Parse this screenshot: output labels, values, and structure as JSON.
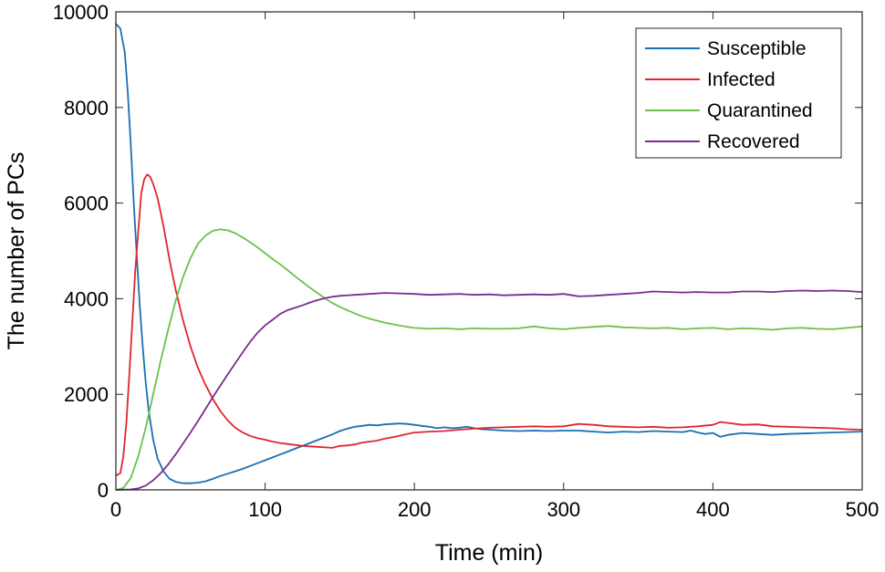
{
  "chart_data": {
    "type": "line",
    "title": "",
    "xlabel": "Time (min)",
    "ylabel": "The number of PCs",
    "xlim": [
      0,
      500
    ],
    "ylim": [
      0,
      10000
    ],
    "xticks": [
      0,
      100,
      200,
      300,
      400,
      500
    ],
    "yticks": [
      0,
      2000,
      4000,
      6000,
      8000,
      10000
    ],
    "xtick_labels": [
      "0",
      "100",
      "200",
      "300",
      "400",
      "500"
    ],
    "ytick_labels": [
      "0",
      "2000",
      "4000",
      "6000",
      "8000",
      "10000"
    ],
    "grid": false,
    "legend_position": "top-right",
    "series": [
      {
        "name": "Susceptible",
        "color": "#1a6fb5",
        "points": [
          [
            0,
            9750
          ],
          [
            3,
            9650
          ],
          [
            6,
            9150
          ],
          [
            8,
            8300
          ],
          [
            10,
            7200
          ],
          [
            12,
            6000
          ],
          [
            14,
            4900
          ],
          [
            16,
            3850
          ],
          [
            18,
            3000
          ],
          [
            20,
            2250
          ],
          [
            22,
            1650
          ],
          [
            25,
            1050
          ],
          [
            28,
            650
          ],
          [
            32,
            380
          ],
          [
            36,
            230
          ],
          [
            40,
            170
          ],
          [
            45,
            140
          ],
          [
            50,
            140
          ],
          [
            55,
            150
          ],
          [
            60,
            180
          ],
          [
            65,
            230
          ],
          [
            70,
            290
          ],
          [
            75,
            340
          ],
          [
            80,
            390
          ],
          [
            85,
            440
          ],
          [
            90,
            500
          ],
          [
            95,
            560
          ],
          [
            100,
            620
          ],
          [
            105,
            680
          ],
          [
            110,
            740
          ],
          [
            115,
            800
          ],
          [
            120,
            860
          ],
          [
            125,
            920
          ],
          [
            130,
            980
          ],
          [
            135,
            1040
          ],
          [
            140,
            1100
          ],
          [
            145,
            1160
          ],
          [
            150,
            1230
          ],
          [
            155,
            1280
          ],
          [
            160,
            1320
          ],
          [
            165,
            1340
          ],
          [
            170,
            1360
          ],
          [
            175,
            1350
          ],
          [
            180,
            1370
          ],
          [
            185,
            1380
          ],
          [
            190,
            1390
          ],
          [
            195,
            1380
          ],
          [
            200,
            1360
          ],
          [
            205,
            1340
          ],
          [
            210,
            1320
          ],
          [
            215,
            1290
          ],
          [
            220,
            1310
          ],
          [
            225,
            1290
          ],
          [
            230,
            1300
          ],
          [
            235,
            1320
          ],
          [
            240,
            1290
          ],
          [
            245,
            1270
          ],
          [
            250,
            1260
          ],
          [
            260,
            1240
          ],
          [
            270,
            1230
          ],
          [
            280,
            1240
          ],
          [
            290,
            1230
          ],
          [
            300,
            1240
          ],
          [
            310,
            1240
          ],
          [
            320,
            1220
          ],
          [
            330,
            1200
          ],
          [
            340,
            1220
          ],
          [
            350,
            1210
          ],
          [
            360,
            1230
          ],
          [
            370,
            1220
          ],
          [
            380,
            1210
          ],
          [
            385,
            1240
          ],
          [
            390,
            1200
          ],
          [
            395,
            1170
          ],
          [
            400,
            1190
          ],
          [
            405,
            1110
          ],
          [
            410,
            1150
          ],
          [
            420,
            1190
          ],
          [
            430,
            1170
          ],
          [
            440,
            1150
          ],
          [
            450,
            1170
          ],
          [
            460,
            1180
          ],
          [
            470,
            1190
          ],
          [
            480,
            1200
          ],
          [
            490,
            1210
          ],
          [
            500,
            1220
          ]
        ]
      },
      {
        "name": "Infected",
        "color": "#e0262d",
        "points": [
          [
            0,
            300
          ],
          [
            3,
            350
          ],
          [
            5,
            700
          ],
          [
            7,
            1400
          ],
          [
            9,
            2400
          ],
          [
            11,
            3500
          ],
          [
            13,
            4600
          ],
          [
            15,
            5400
          ],
          [
            17,
            6200
          ],
          [
            19,
            6500
          ],
          [
            21,
            6600
          ],
          [
            23,
            6550
          ],
          [
            25,
            6400
          ],
          [
            28,
            6100
          ],
          [
            32,
            5500
          ],
          [
            36,
            4800
          ],
          [
            40,
            4200
          ],
          [
            45,
            3550
          ],
          [
            50,
            3000
          ],
          [
            55,
            2550
          ],
          [
            60,
            2200
          ],
          [
            65,
            1900
          ],
          [
            70,
            1650
          ],
          [
            75,
            1450
          ],
          [
            80,
            1300
          ],
          [
            85,
            1200
          ],
          [
            90,
            1130
          ],
          [
            95,
            1080
          ],
          [
            100,
            1050
          ],
          [
            105,
            1010
          ],
          [
            110,
            980
          ],
          [
            115,
            960
          ],
          [
            120,
            940
          ],
          [
            125,
            920
          ],
          [
            130,
            910
          ],
          [
            135,
            900
          ],
          [
            140,
            890
          ],
          [
            145,
            880
          ],
          [
            150,
            920
          ],
          [
            155,
            930
          ],
          [
            160,
            950
          ],
          [
            165,
            990
          ],
          [
            170,
            1010
          ],
          [
            175,
            1030
          ],
          [
            180,
            1070
          ],
          [
            185,
            1100
          ],
          [
            190,
            1130
          ],
          [
            195,
            1170
          ],
          [
            200,
            1200
          ],
          [
            210,
            1220
          ],
          [
            220,
            1230
          ],
          [
            230,
            1260
          ],
          [
            240,
            1280
          ],
          [
            250,
            1300
          ],
          [
            260,
            1310
          ],
          [
            270,
            1320
          ],
          [
            280,
            1330
          ],
          [
            290,
            1320
          ],
          [
            300,
            1330
          ],
          [
            310,
            1380
          ],
          [
            320,
            1360
          ],
          [
            330,
            1330
          ],
          [
            340,
            1320
          ],
          [
            350,
            1310
          ],
          [
            360,
            1320
          ],
          [
            370,
            1300
          ],
          [
            380,
            1310
          ],
          [
            390,
            1330
          ],
          [
            400,
            1360
          ],
          [
            405,
            1420
          ],
          [
            410,
            1400
          ],
          [
            420,
            1360
          ],
          [
            430,
            1370
          ],
          [
            440,
            1330
          ],
          [
            450,
            1320
          ],
          [
            460,
            1310
          ],
          [
            470,
            1300
          ],
          [
            480,
            1290
          ],
          [
            490,
            1270
          ],
          [
            500,
            1260
          ]
        ]
      },
      {
        "name": "Quarantined",
        "color": "#6cc04a",
        "points": [
          [
            0,
            0
          ],
          [
            5,
            40
          ],
          [
            10,
            250
          ],
          [
            15,
            700
          ],
          [
            20,
            1300
          ],
          [
            25,
            2000
          ],
          [
            30,
            2700
          ],
          [
            35,
            3350
          ],
          [
            40,
            3950
          ],
          [
            45,
            4450
          ],
          [
            50,
            4850
          ],
          [
            55,
            5150
          ],
          [
            60,
            5320
          ],
          [
            65,
            5420
          ],
          [
            70,
            5450
          ],
          [
            75,
            5430
          ],
          [
            80,
            5370
          ],
          [
            85,
            5280
          ],
          [
            90,
            5180
          ],
          [
            95,
            5070
          ],
          [
            100,
            4950
          ],
          [
            105,
            4830
          ],
          [
            110,
            4720
          ],
          [
            115,
            4600
          ],
          [
            120,
            4470
          ],
          [
            125,
            4350
          ],
          [
            130,
            4230
          ],
          [
            135,
            4120
          ],
          [
            140,
            4010
          ],
          [
            145,
            3910
          ],
          [
            150,
            3830
          ],
          [
            155,
            3760
          ],
          [
            160,
            3690
          ],
          [
            165,
            3630
          ],
          [
            170,
            3580
          ],
          [
            175,
            3540
          ],
          [
            180,
            3500
          ],
          [
            185,
            3470
          ],
          [
            190,
            3440
          ],
          [
            195,
            3410
          ],
          [
            200,
            3390
          ],
          [
            210,
            3370
          ],
          [
            220,
            3380
          ],
          [
            230,
            3360
          ],
          [
            240,
            3380
          ],
          [
            250,
            3370
          ],
          [
            260,
            3370
          ],
          [
            270,
            3380
          ],
          [
            280,
            3420
          ],
          [
            290,
            3380
          ],
          [
            300,
            3360
          ],
          [
            310,
            3390
          ],
          [
            320,
            3410
          ],
          [
            330,
            3430
          ],
          [
            340,
            3400
          ],
          [
            350,
            3390
          ],
          [
            360,
            3380
          ],
          [
            370,
            3390
          ],
          [
            380,
            3360
          ],
          [
            390,
            3380
          ],
          [
            400,
            3390
          ],
          [
            410,
            3360
          ],
          [
            420,
            3380
          ],
          [
            430,
            3370
          ],
          [
            440,
            3350
          ],
          [
            450,
            3380
          ],
          [
            460,
            3390
          ],
          [
            470,
            3370
          ],
          [
            480,
            3360
          ],
          [
            490,
            3390
          ],
          [
            500,
            3420
          ]
        ]
      },
      {
        "name": "Recovered",
        "color": "#7b2d8e",
        "points": [
          [
            0,
            0
          ],
          [
            10,
            10
          ],
          [
            15,
            30
          ],
          [
            20,
            90
          ],
          [
            25,
            200
          ],
          [
            30,
            350
          ],
          [
            35,
            530
          ],
          [
            40,
            740
          ],
          [
            45,
            970
          ],
          [
            50,
            1200
          ],
          [
            55,
            1440
          ],
          [
            60,
            1690
          ],
          [
            65,
            1940
          ],
          [
            70,
            2180
          ],
          [
            75,
            2420
          ],
          [
            80,
            2650
          ],
          [
            85,
            2880
          ],
          [
            90,
            3100
          ],
          [
            95,
            3290
          ],
          [
            100,
            3440
          ],
          [
            105,
            3560
          ],
          [
            110,
            3680
          ],
          [
            115,
            3760
          ],
          [
            120,
            3810
          ],
          [
            125,
            3860
          ],
          [
            130,
            3920
          ],
          [
            135,
            3970
          ],
          [
            140,
            4010
          ],
          [
            145,
            4040
          ],
          [
            150,
            4060
          ],
          [
            160,
            4080
          ],
          [
            170,
            4100
          ],
          [
            180,
            4120
          ],
          [
            190,
            4110
          ],
          [
            200,
            4100
          ],
          [
            210,
            4080
          ],
          [
            220,
            4090
          ],
          [
            230,
            4100
          ],
          [
            240,
            4080
          ],
          [
            250,
            4090
          ],
          [
            260,
            4070
          ],
          [
            270,
            4080
          ],
          [
            280,
            4090
          ],
          [
            290,
            4080
          ],
          [
            300,
            4100
          ],
          [
            310,
            4050
          ],
          [
            320,
            4060
          ],
          [
            330,
            4080
          ],
          [
            340,
            4100
          ],
          [
            350,
            4120
          ],
          [
            360,
            4150
          ],
          [
            370,
            4140
          ],
          [
            380,
            4130
          ],
          [
            390,
            4140
          ],
          [
            400,
            4130
          ],
          [
            410,
            4130
          ],
          [
            420,
            4150
          ],
          [
            430,
            4150
          ],
          [
            440,
            4140
          ],
          [
            450,
            4160
          ],
          [
            460,
            4170
          ],
          [
            470,
            4160
          ],
          [
            480,
            4170
          ],
          [
            490,
            4160
          ],
          [
            500,
            4140
          ]
        ]
      }
    ]
  }
}
